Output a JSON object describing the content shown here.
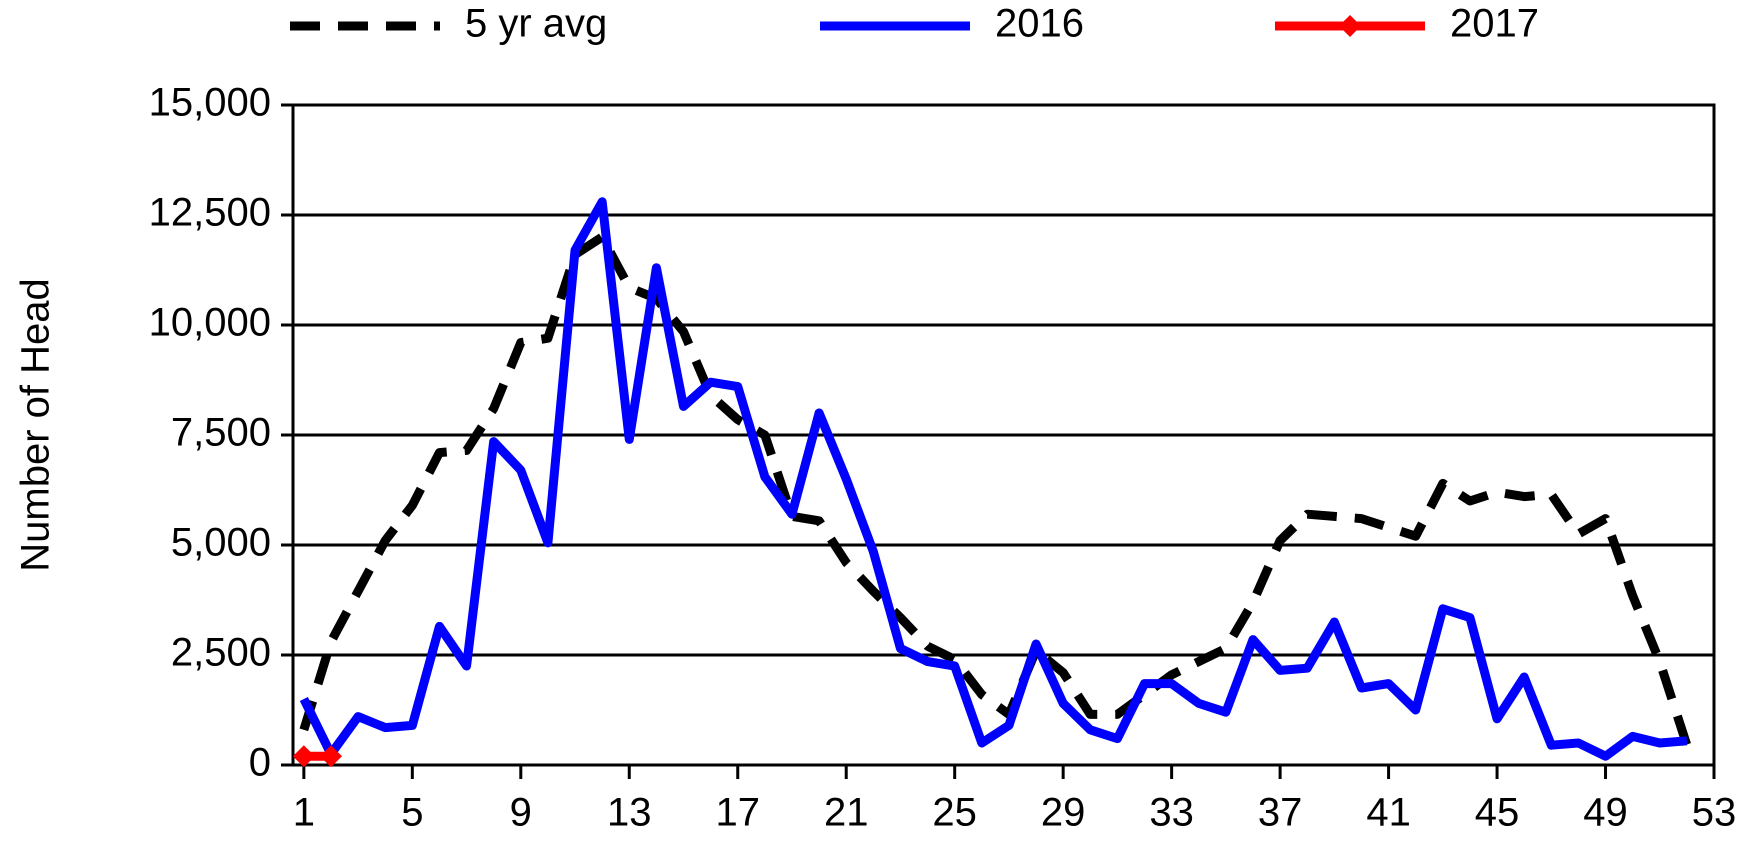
{
  "chart_data": {
    "type": "line",
    "y_label": "Number of Head",
    "x": [
      1,
      2,
      3,
      4,
      5,
      6,
      7,
      8,
      9,
      10,
      11,
      12,
      13,
      14,
      15,
      16,
      17,
      18,
      19,
      20,
      21,
      22,
      23,
      24,
      25,
      26,
      27,
      28,
      29,
      30,
      31,
      32,
      33,
      34,
      35,
      36,
      37,
      38,
      39,
      40,
      41,
      42,
      43,
      44,
      45,
      46,
      47,
      48,
      49,
      50,
      51,
      52
    ],
    "xlim": [
      0.6,
      53
    ],
    "xticks": [
      1,
      5,
      9,
      13,
      17,
      21,
      25,
      29,
      33,
      37,
      41,
      45,
      49,
      53
    ],
    "ylim": [
      0,
      15000
    ],
    "yticks": [
      0,
      {
        "value": 2500,
        "label": "2,500"
      },
      {
        "value": 5000,
        "label": "5,000"
      },
      {
        "value": 7500,
        "label": "7,500"
      },
      {
        "value": 10000,
        "label": "10,000"
      },
      {
        "value": 12500,
        "label": "12,500"
      },
      {
        "value": 15000,
        "label": "15,000"
      }
    ],
    "grid": true,
    "legend": "top",
    "series": [
      {
        "name": "5 yr avg",
        "color": "#000000",
        "dashed": true,
        "values": [
          800,
          2800,
          3950,
          5100,
          5900,
          7100,
          7150,
          8100,
          9600,
          9700,
          11600,
          12000,
          10850,
          10600,
          9850,
          8400,
          7850,
          7500,
          5650,
          5550,
          4600,
          3950,
          3350,
          2700,
          2400,
          1600,
          1150,
          2600,
          2100,
          1150,
          1150,
          1600,
          2050,
          2350,
          2650,
          3700,
          5100,
          5700,
          5650,
          5600,
          5400,
          5200,
          6400,
          6000,
          6200,
          6100,
          6150,
          5250,
          5600,
          3850,
          2350,
          450
        ]
      },
      {
        "name": "2016",
        "color": "#0000ff",
        "values": [
          1500,
          250,
          1100,
          850,
          900,
          3150,
          2250,
          7350,
          6700,
          5050,
          11700,
          12800,
          7400,
          11300,
          8150,
          8700,
          8600,
          6550,
          5700,
          8000,
          6500,
          4850,
          2650,
          2350,
          2250,
          500,
          900,
          2750,
          1400,
          800,
          600,
          1850,
          1850,
          1400,
          1200,
          2850,
          2150,
          2200,
          3250,
          1750,
          1850,
          1250,
          3550,
          3350,
          1050,
          2000,
          450,
          500,
          200,
          650,
          500,
          550
        ]
      },
      {
        "name": "2017",
        "color": "#ff0000",
        "marker": "diamond",
        "values": [
          200,
          200,
          null,
          null,
          null,
          null,
          null,
          null,
          null,
          null,
          null,
          null,
          null,
          null,
          null,
          null,
          null,
          null,
          null,
          null,
          null,
          null,
          null,
          null,
          null,
          null,
          null,
          null,
          null,
          null,
          null,
          null,
          null,
          null,
          null,
          null,
          null,
          null,
          null,
          null,
          null,
          null,
          null,
          null,
          null,
          null,
          null,
          null,
          null,
          null,
          null,
          null
        ]
      }
    ]
  }
}
